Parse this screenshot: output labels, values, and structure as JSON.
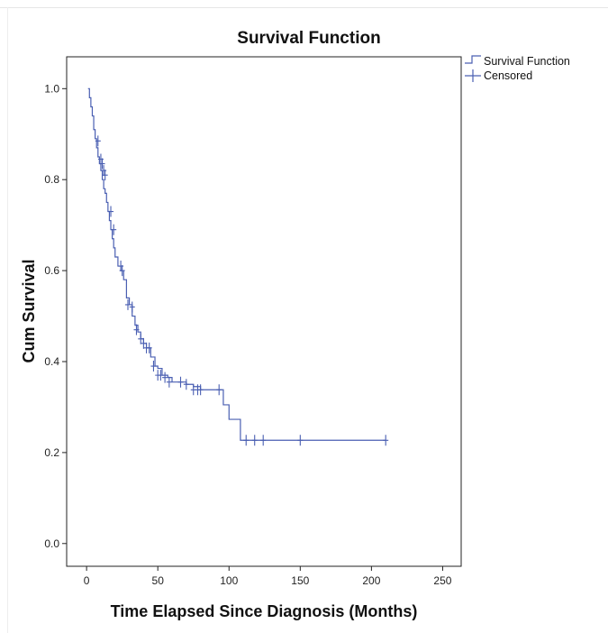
{
  "chart_data": {
    "type": "line",
    "title": "Survival Function",
    "xlabel": "Time Elapsed Since Diagnosis (Months)",
    "ylabel": "Cum Survival",
    "xlim": [
      -14,
      263
    ],
    "ylim": [
      -0.05,
      1.07
    ],
    "xticks": [
      0,
      50,
      100,
      150,
      200,
      250
    ],
    "yticks": [
      "0.0",
      "0.2",
      "0.4",
      "0.6",
      "0.8",
      "1.0"
    ],
    "grid": false,
    "legend_position": "top-right",
    "colors": {
      "series": "#4a5fb2",
      "axis": "#222222"
    },
    "legend": [
      "Survival Function",
      "Censored"
    ],
    "series": [
      {
        "name": "Survival Function",
        "kind": "step",
        "x": [
          1,
          2,
          3,
          4,
          5,
          6,
          7,
          8,
          9,
          10,
          11,
          12,
          13,
          14,
          15,
          16,
          17,
          18,
          19,
          20,
          22,
          24,
          26,
          28,
          30,
          32,
          34,
          36,
          38,
          40,
          42,
          45,
          48,
          50,
          53,
          57,
          60,
          65,
          70,
          75,
          80,
          93,
          96,
          100,
          104,
          108,
          210
        ],
        "y": [
          1.0,
          0.98,
          0.96,
          0.94,
          0.91,
          0.89,
          0.87,
          0.85,
          0.835,
          0.82,
          0.8,
          0.78,
          0.77,
          0.75,
          0.73,
          0.71,
          0.69,
          0.67,
          0.65,
          0.63,
          0.61,
          0.6,
          0.58,
          0.54,
          0.525,
          0.5,
          0.48,
          0.465,
          0.45,
          0.44,
          0.43,
          0.41,
          0.39,
          0.385,
          0.37,
          0.365,
          0.355,
          0.355,
          0.35,
          0.345,
          0.338,
          0.338,
          0.305,
          0.273,
          0.273,
          0.227,
          0.227
        ]
      },
      {
        "name": "Censored",
        "kind": "marker",
        "x": [
          8,
          10,
          11,
          12,
          13,
          17,
          19,
          24,
          25,
          29,
          32,
          35,
          38,
          40,
          42,
          44,
          47,
          50,
          52,
          55,
          58,
          66,
          70,
          75,
          78,
          80,
          93,
          112,
          118,
          124,
          150,
          210
        ],
        "y": [
          0.885,
          0.845,
          0.835,
          0.82,
          0.81,
          0.73,
          0.69,
          0.61,
          0.6,
          0.525,
          0.52,
          0.47,
          0.45,
          0.44,
          0.43,
          0.43,
          0.39,
          0.37,
          0.37,
          0.365,
          0.355,
          0.355,
          0.35,
          0.338,
          0.338,
          0.338,
          0.338,
          0.227,
          0.227,
          0.227,
          0.227,
          0.227
        ]
      }
    ]
  }
}
